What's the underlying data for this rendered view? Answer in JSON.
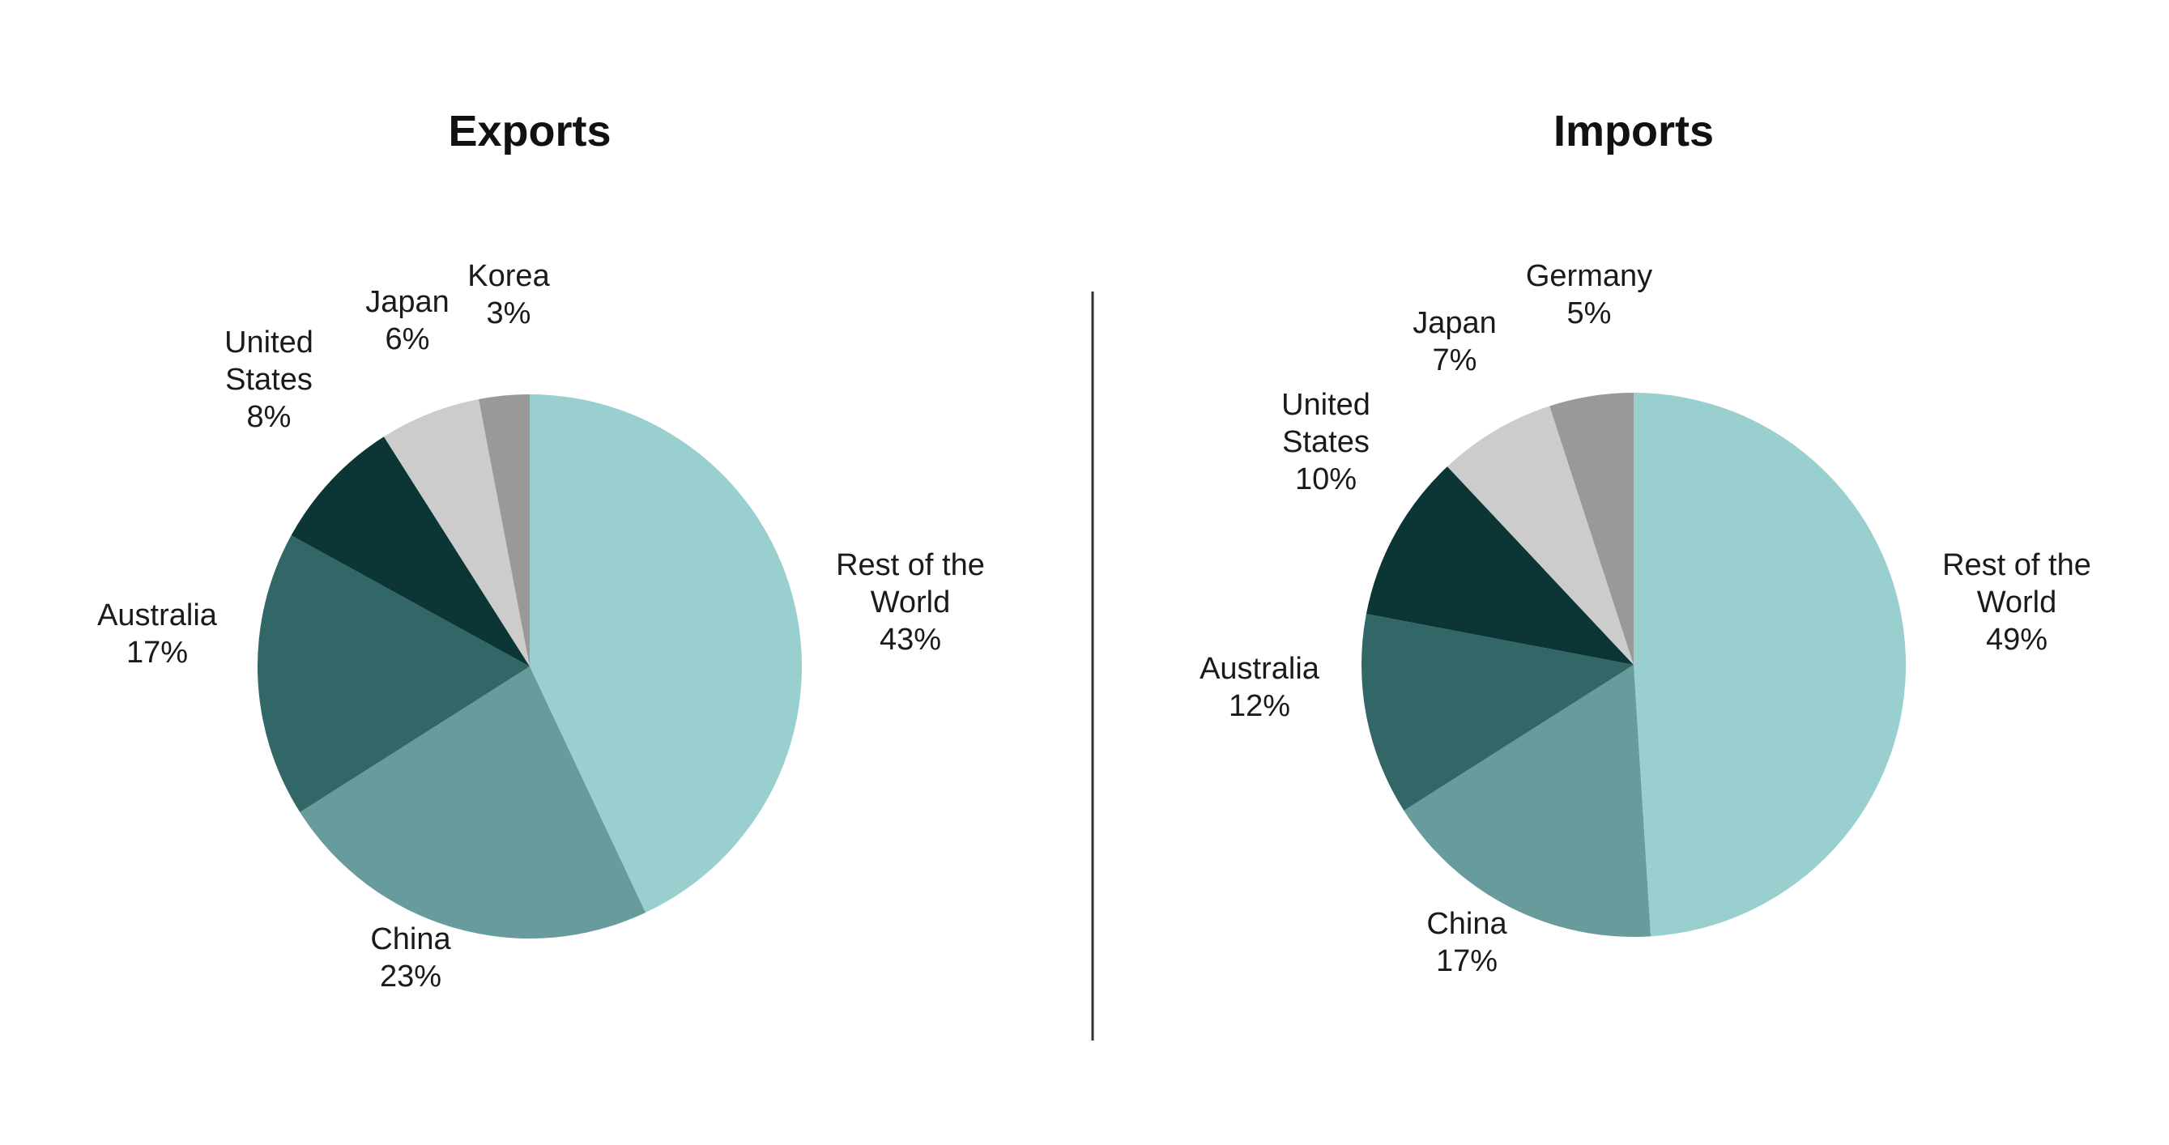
{
  "chart_data": [
    {
      "type": "pie",
      "title": "Exports",
      "slices": [
        {
          "label": [
            "Rest of the",
            "World"
          ],
          "value": 43,
          "value_label": "43%",
          "color": "#99cfce"
        },
        {
          "label": [
            "China"
          ],
          "value": 23,
          "value_label": "23%",
          "color": "#689b9b"
        },
        {
          "label": [
            "Australia"
          ],
          "value": 17,
          "value_label": "17%",
          "color": "#326667"
        },
        {
          "label": [
            "United",
            "States"
          ],
          "value": 8,
          "value_label": "8%",
          "color": "#0c3536"
        },
        {
          "label": [
            "Japan"
          ],
          "value": 6,
          "value_label": "6%",
          "color": "#cccccc"
        },
        {
          "label": [
            "Korea"
          ],
          "value": 3,
          "value_label": "3%",
          "color": "#999999"
        }
      ]
    },
    {
      "type": "pie",
      "title": "Imports",
      "slices": [
        {
          "label": [
            "Rest of the",
            "World"
          ],
          "value": 49,
          "value_label": "49%",
          "color": "#99cfce"
        },
        {
          "label": [
            "China"
          ],
          "value": 17,
          "value_label": "17%",
          "color": "#689b9b"
        },
        {
          "label": [
            "Australia"
          ],
          "value": 12,
          "value_label": "12%",
          "color": "#326667"
        },
        {
          "label": [
            "United",
            "States"
          ],
          "value": 10,
          "value_label": "10%",
          "color": "#0c3536"
        },
        {
          "label": [
            "Japan"
          ],
          "value": 7,
          "value_label": "7%",
          "color": "#cccccc"
        },
        {
          "label": [
            "Germany"
          ],
          "value": 5,
          "value_label": "5%",
          "color": "#999999"
        }
      ]
    }
  ]
}
